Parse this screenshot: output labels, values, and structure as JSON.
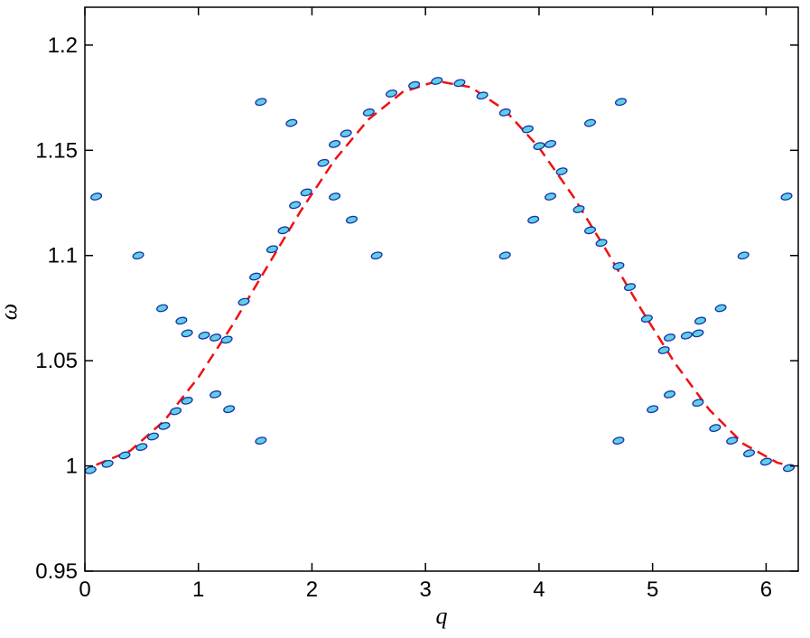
{
  "chart_data": {
    "type": "contour",
    "x_label": "q",
    "y_label": "ω",
    "xlim": [
      0,
      6.2832
    ],
    "ylim": [
      0.95,
      1.218
    ],
    "xticks": [
      0,
      1,
      2,
      3,
      4,
      5,
      6
    ],
    "yticks": [
      0.95,
      1,
      1.05,
      1.1,
      1.15,
      1.2
    ],
    "series": [
      {
        "style": "dashed",
        "color": "#ee1111",
        "x": [
          0.1,
          0.4,
          0.7,
          1.0,
          1.3,
          1.6,
          1.9,
          2.2,
          2.5,
          2.8,
          3.1,
          3.4,
          3.7,
          4.0,
          4.3,
          4.6,
          4.9,
          5.2,
          5.5,
          5.8,
          6.1,
          6.2
        ],
        "y": [
          1.0005,
          1.0072,
          1.0215,
          1.0421,
          1.067,
          1.0942,
          1.1211,
          1.1454,
          1.1648,
          1.1777,
          1.1829,
          1.18,
          1.1691,
          1.1513,
          1.1282,
          1.1018,
          1.0744,
          1.0486,
          1.0267,
          1.0105,
          1.0015,
          1.0003
        ]
      },
      {
        "style": "blobs",
        "color": "#1a2fb0",
        "x": [
          0.05,
          0.2,
          0.35,
          0.5,
          0.6,
          0.7,
          0.8,
          0.9,
          1.25,
          1.4,
          1.5,
          1.65,
          1.75,
          1.85,
          1.95,
          2.1,
          2.3,
          2.5,
          2.7,
          2.9,
          3.1,
          3.3,
          3.5,
          3.7,
          3.9,
          4.0,
          4.2,
          4.35,
          4.45,
          4.55,
          4.7,
          4.8,
          4.95,
          5.1,
          5.4,
          5.55,
          5.7,
          5.85,
          6.0,
          6.2,
          0.9,
          1.05,
          1.15,
          5.15,
          5.3,
          5.4,
          1.15,
          1.27,
          5.0,
          5.15,
          1.55,
          4.7,
          2.2,
          4.1,
          2.2,
          4.1,
          1.82,
          4.45,
          1.55,
          4.72,
          2.35,
          3.95,
          0.1,
          6.18,
          0.47,
          5.8,
          2.57,
          3.7,
          0.85,
          5.42,
          0.68,
          5.6
        ],
        "y": [
          0.998,
          1.001,
          1.005,
          1.009,
          1.014,
          1.019,
          1.026,
          1.031,
          1.06,
          1.078,
          1.09,
          1.103,
          1.112,
          1.124,
          1.13,
          1.144,
          1.158,
          1.168,
          1.177,
          1.181,
          1.183,
          1.182,
          1.176,
          1.168,
          1.16,
          1.152,
          1.14,
          1.122,
          1.112,
          1.106,
          1.095,
          1.085,
          1.07,
          1.055,
          1.03,
          1.018,
          1.012,
          1.006,
          1.002,
          0.999,
          1.063,
          1.062,
          1.061,
          1.061,
          1.062,
          1.063,
          1.034,
          1.027,
          1.027,
          1.034,
          1.012,
          1.012,
          1.128,
          1.128,
          1.153,
          1.153,
          1.163,
          1.163,
          1.173,
          1.173,
          1.117,
          1.117,
          1.128,
          1.128,
          1.1,
          1.1,
          1.1,
          1.1,
          1.069,
          1.069,
          1.075,
          1.075
        ]
      }
    ]
  }
}
